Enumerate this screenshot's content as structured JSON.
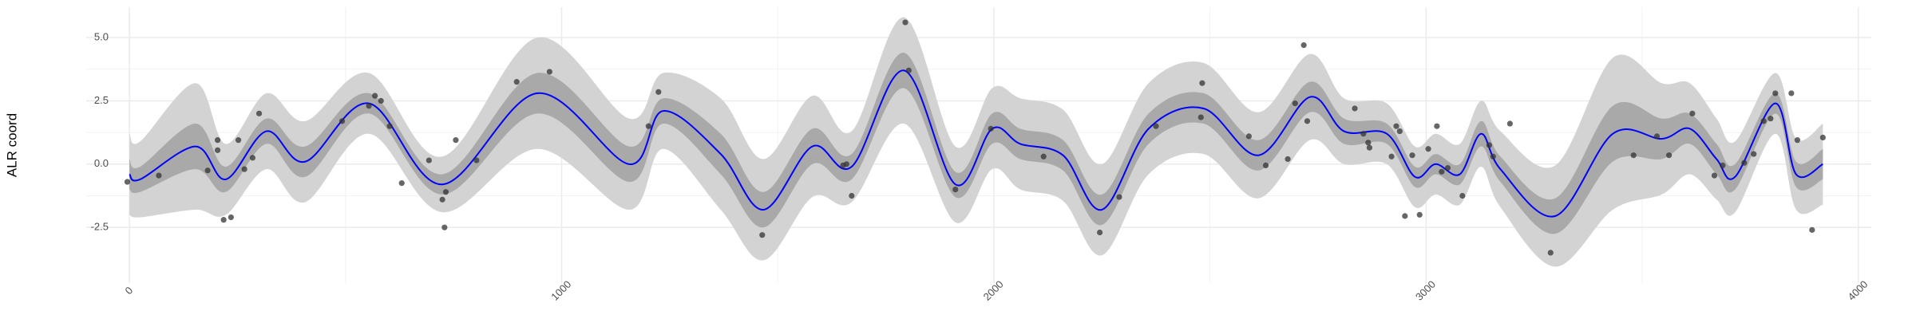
{
  "chart_data": {
    "type": "line",
    "y_label": "ALR coord",
    "xlim": [
      -100,
      4030
    ],
    "ylim": [
      -4.7,
      6.2
    ],
    "xticks": [
      0,
      1000,
      2000,
      3000,
      4000
    ],
    "yticks": [
      -2.5,
      {
        "value": 0,
        "label": "0.0"
      },
      2.5,
      {
        "value": 5,
        "label": "5.0"
      }
    ],
    "grid": true,
    "x": [
      0,
      25,
      153,
      223,
      317,
      407,
      554,
      724,
      944,
      1156,
      1235,
      1368,
      1467,
      1580,
      1671,
      1792,
      1911,
      1996,
      2061,
      2160,
      2250,
      2358,
      2485,
      2612,
      2731,
      2810,
      2909,
      2974,
      3022,
      3078,
      3127,
      3172,
      3299,
      3432,
      3545,
      3610,
      3672,
      3715,
      3808,
      3856,
      3918
    ],
    "line": {
      "color": "#0000ff",
      "values": [
        -0.4,
        -0.6,
        0.7,
        -0.6,
        1.3,
        0.1,
        2.4,
        -0.8,
        2.8,
        0.0,
        2.1,
        0.4,
        -1.8,
        0.7,
        -0.1,
        3.7,
        -0.8,
        1.4,
        0.8,
        0.35,
        -1.8,
        1.4,
        2.2,
        0.35,
        2.65,
        1.3,
        1.2,
        -0.5,
        0.0,
        -0.4,
        1.2,
        -0.2,
        -2.05,
        1.2,
        1.0,
        1.4,
        0.2,
        -0.5,
        2.4,
        -0.4,
        0.0
      ]
    },
    "band_95": {
      "color": "#d3d3d3",
      "lower": [
        -2.0,
        -2.1,
        -1.8,
        -2.0,
        -0.2,
        -1.5,
        1.2,
        -1.9,
        0.6,
        -1.8,
        0.6,
        -1.8,
        -3.8,
        -1.3,
        -1.5,
        1.6,
        -2.3,
        -0.2,
        -1.0,
        -1.45,
        -3.6,
        -0.4,
        0.4,
        -1.35,
        0.95,
        0.0,
        0.0,
        -1.7,
        -1.2,
        -1.6,
        -0.1,
        -1.7,
        -4.05,
        -1.8,
        -1.2,
        -0.4,
        -1.4,
        -1.9,
        1.2,
        -1.8,
        -1.6
      ],
      "upper": [
        1.2,
        0.9,
        3.2,
        0.8,
        2.8,
        1.7,
        3.6,
        0.3,
        5.0,
        1.8,
        3.6,
        2.6,
        0.2,
        2.7,
        1.3,
        5.8,
        0.7,
        3.0,
        2.6,
        2.15,
        0.0,
        3.2,
        4.0,
        2.05,
        4.35,
        2.6,
        2.4,
        0.7,
        1.2,
        0.8,
        2.5,
        1.3,
        -0.05,
        4.2,
        3.2,
        3.2,
        1.8,
        0.9,
        3.6,
        1.0,
        1.6
      ]
    },
    "band_50": {
      "color": "#a9a9a9",
      "lower": [
        -1.0,
        -1.1,
        -0.2,
        -1.1,
        0.8,
        -0.5,
        2.0,
        -1.2,
        2.0,
        -0.7,
        1.6,
        -0.4,
        -2.5,
        0.0,
        -0.6,
        3.0,
        -1.3,
        0.8,
        0.2,
        -0.25,
        -2.4,
        0.8,
        1.6,
        -0.25,
        2.05,
        0.8,
        0.8,
        -0.9,
        -0.4,
        -0.8,
        0.7,
        -0.7,
        -2.75,
        0.1,
        0.2,
        0.8,
        -0.4,
        -1.0,
        2.0,
        -0.9,
        -0.6
      ],
      "upper": [
        0.2,
        -0.1,
        1.6,
        -0.1,
        1.8,
        0.7,
        2.8,
        -0.4,
        3.6,
        0.7,
        2.6,
        1.2,
        -1.1,
        1.4,
        0.4,
        4.4,
        -0.3,
        2.0,
        1.4,
        0.95,
        -1.2,
        2.0,
        2.8,
        0.95,
        3.25,
        1.8,
        1.6,
        -0.1,
        0.4,
        0.0,
        1.7,
        0.3,
        -1.35,
        2.3,
        1.8,
        2.0,
        0.8,
        0.0,
        2.8,
        0.1,
        0.6
      ]
    },
    "points": {
      "color": "#333333",
      "x": [
        -5,
        68,
        181,
        204,
        204,
        218,
        235,
        252,
        266,
        285,
        300,
        492,
        554,
        568,
        582,
        602,
        630,
        693,
        724,
        732,
        729,
        755,
        803,
        896,
        972,
        1201,
        1224,
        1464,
        1651,
        1659,
        1671,
        1795,
        1803,
        1911,
        1993,
        2115,
        2245,
        2290,
        2375,
        2479,
        2482,
        2590,
        2629,
        2680,
        2697,
        2717,
        2725,
        2835,
        2855,
        2866,
        2869,
        2920,
        2931,
        2939,
        2951,
        2968,
        2985,
        3005,
        3025,
        3036,
        3050,
        3084,
        3146,
        3155,
        3194,
        3288,
        3480,
        3534,
        3562,
        3616,
        3667,
        3686,
        3736,
        3758,
        3781,
        3797,
        3808,
        3845,
        3859,
        3893,
        3918
      ],
      "y": [
        -0.7,
        -0.45,
        -0.25,
        0.95,
        0.55,
        -2.2,
        -2.1,
        0.95,
        -0.2,
        0.25,
        2.0,
        1.7,
        2.3,
        2.7,
        2.5,
        1.5,
        -0.75,
        0.15,
        -1.4,
        -1.1,
        -2.5,
        0.95,
        0.15,
        3.25,
        3.65,
        1.5,
        2.85,
        -2.8,
        -0.05,
        0.0,
        -1.25,
        5.6,
        3.7,
        -1.0,
        1.4,
        0.3,
        -2.7,
        -1.3,
        1.5,
        1.85,
        3.2,
        1.1,
        -0.05,
        0.2,
        2.4,
        4.7,
        1.7,
        2.2,
        1.2,
        0.85,
        0.65,
        0.3,
        1.5,
        1.3,
        -2.05,
        0.35,
        -2.0,
        0.6,
        1.5,
        -0.3,
        -0.15,
        -1.25,
        0.75,
        0.3,
        1.6,
        -3.5,
        0.35,
        1.1,
        0.35,
        2.0,
        -0.45,
        -0.05,
        0.05,
        0.4,
        1.7,
        1.8,
        2.8,
        2.8,
        0.95,
        -2.6,
        1.05
      ]
    }
  }
}
